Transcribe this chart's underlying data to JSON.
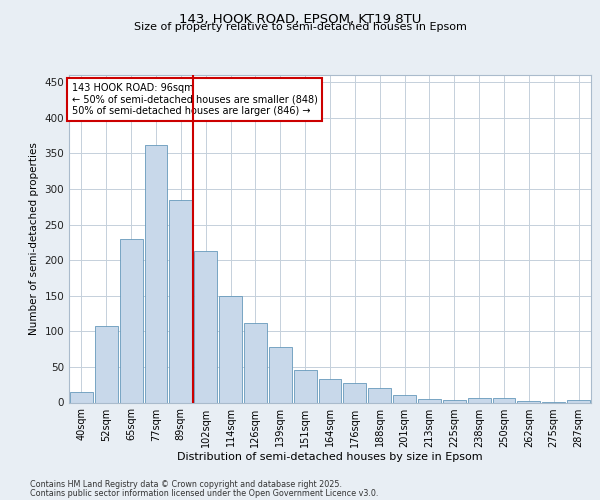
{
  "title1": "143, HOOK ROAD, EPSOM, KT19 8TU",
  "title2": "Size of property relative to semi-detached houses in Epsom",
  "xlabel": "Distribution of semi-detached houses by size in Epsom",
  "ylabel": "Number of semi-detached properties",
  "categories": [
    "40sqm",
    "52sqm",
    "65sqm",
    "77sqm",
    "89sqm",
    "102sqm",
    "114sqm",
    "126sqm",
    "139sqm",
    "151sqm",
    "164sqm",
    "176sqm",
    "188sqm",
    "201sqm",
    "213sqm",
    "225sqm",
    "238sqm",
    "250sqm",
    "262sqm",
    "275sqm",
    "287sqm"
  ],
  "values": [
    15,
    108,
    230,
    362,
    285,
    213,
    150,
    112,
    78,
    45,
    33,
    28,
    20,
    10,
    5,
    4,
    6,
    6,
    2,
    1,
    3
  ],
  "bar_color": "#c8d8ea",
  "bar_edge_color": "#6699bb",
  "vline_color": "#cc0000",
  "annotation_text": "143 HOOK ROAD: 96sqm\n← 50% of semi-detached houses are smaller (848)\n50% of semi-detached houses are larger (846) →",
  "annotation_box_color": "#cc0000",
  "ylim": [
    0,
    460
  ],
  "yticks": [
    0,
    50,
    100,
    150,
    200,
    250,
    300,
    350,
    400,
    450
  ],
  "footer1": "Contains HM Land Registry data © Crown copyright and database right 2025.",
  "footer2": "Contains public sector information licensed under the Open Government Licence v3.0.",
  "bg_color": "#e8eef4",
  "plot_bg_color": "#ffffff",
  "grid_color": "#c5d0db"
}
